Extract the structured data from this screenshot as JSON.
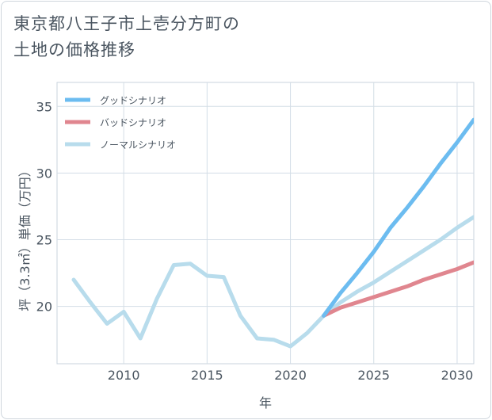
{
  "title_line1": "東京都八王子市上壱分方町の",
  "title_line2": "土地の価格推移",
  "chart_data": {
    "type": "line",
    "xlabel": "年",
    "ylabel": "坪（3.3㎡）単価（万円）",
    "xlim": [
      2006,
      2031
    ],
    "ylim": [
      15.7,
      36.8
    ],
    "xticks": [
      2010,
      2015,
      2020,
      2025,
      2030
    ],
    "yticks": [
      20,
      25,
      30,
      35
    ],
    "grid": true,
    "legend_position": "top-left",
    "series": [
      {
        "name": "グッドシナリオ",
        "color": "#6cbcf0",
        "x": [
          2022,
          2023,
          2024,
          2025,
          2026,
          2027,
          2028,
          2029,
          2030,
          2031
        ],
        "y": [
          19.3,
          21.0,
          22.5,
          24.1,
          25.9,
          27.4,
          29.0,
          30.7,
          32.3,
          34.0
        ]
      },
      {
        "name": "バッドシナリオ",
        "color": "#e0868f",
        "x": [
          2022,
          2023,
          2024,
          2025,
          2026,
          2027,
          2028,
          2029,
          2030,
          2031
        ],
        "y": [
          19.3,
          19.9,
          20.3,
          20.7,
          21.1,
          21.5,
          22.0,
          22.4,
          22.8,
          23.3
        ]
      },
      {
        "name": "ノーマルシナリオ",
        "color": "#b8dcec",
        "x": [
          2007,
          2008,
          2009,
          2010,
          2011,
          2012,
          2013,
          2014,
          2015,
          2016,
          2017,
          2018,
          2019,
          2020,
          2021,
          2022,
          2023,
          2024,
          2025,
          2026,
          2027,
          2028,
          2029,
          2030,
          2031
        ],
        "y": [
          22.0,
          20.3,
          18.7,
          19.6,
          17.6,
          20.6,
          23.1,
          23.2,
          22.3,
          22.2,
          19.3,
          17.6,
          17.5,
          17.0,
          18.0,
          19.3,
          20.3,
          21.1,
          21.8,
          22.6,
          23.4,
          24.2,
          25.0,
          25.9,
          26.7
        ]
      }
    ]
  }
}
